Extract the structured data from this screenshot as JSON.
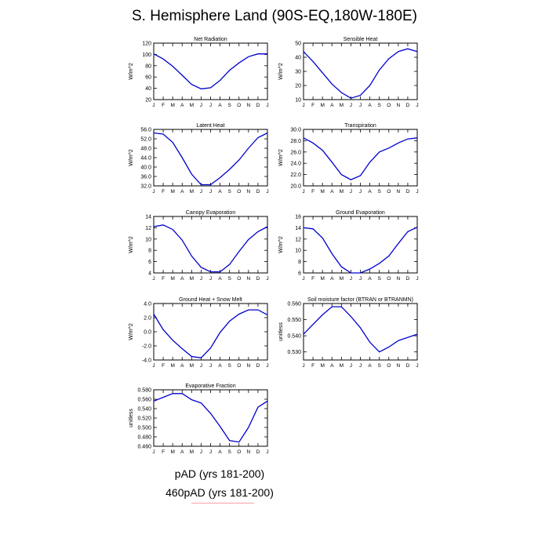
{
  "title": "S. Hemisphere Land (90S-EQ,180W-180E)",
  "legend": [
    {
      "label": "pAD (yrs 181-200)",
      "color": "#0000cc"
    },
    {
      "label": "460pAD (yrs 181-200)",
      "color": "#ff0000"
    }
  ],
  "months": [
    "J",
    "F",
    "M",
    "A",
    "M",
    "J",
    "J",
    "A",
    "S",
    "O",
    "N",
    "D",
    "J"
  ],
  "colors": {
    "series_primary": "#0000cc",
    "series_secondary": "#ff0000"
  },
  "chart_data": [
    {
      "type": "line",
      "title": "Net Radiation",
      "ylabel": "W/m^2",
      "ylim": [
        20,
        120
      ],
      "yticks": [
        20,
        40,
        60,
        80,
        100,
        120
      ],
      "ytick_labels": [
        "20",
        "40",
        "60",
        "80",
        "100",
        "120"
      ],
      "categories": [
        "J",
        "F",
        "M",
        "A",
        "M",
        "J",
        "J",
        "A",
        "S",
        "O",
        "N",
        "D",
        "J"
      ],
      "series": [
        {
          "values": [
            101,
            92,
            79,
            63,
            47,
            39,
            41,
            54,
            72,
            85,
            96,
            101,
            101
          ]
        }
      ]
    },
    {
      "type": "line",
      "title": "Sensible Heat",
      "ylabel": "W/m^2",
      "ylim": [
        10,
        50
      ],
      "yticks": [
        10,
        20,
        30,
        40,
        50
      ],
      "ytick_labels": [
        "10",
        "20",
        "30",
        "40",
        "50"
      ],
      "categories": [
        "J",
        "F",
        "M",
        "A",
        "M",
        "J",
        "J",
        "A",
        "S",
        "O",
        "N",
        "D",
        "J"
      ],
      "series": [
        {
          "values": [
            44,
            37,
            29,
            21,
            15,
            11,
            13,
            20,
            31,
            39,
            44,
            46,
            44
          ]
        }
      ]
    },
    {
      "type": "line",
      "title": "Latent Heat",
      "ylabel": "W/m^2",
      "ylim": [
        32,
        56
      ],
      "yticks": [
        32,
        36,
        40,
        44,
        48,
        52,
        56
      ],
      "ytick_labels": [
        "32.0",
        "36.0",
        "40.0",
        "44.0",
        "48.0",
        "52.0",
        "56.0"
      ],
      "categories": [
        "J",
        "F",
        "M",
        "A",
        "M",
        "J",
        "J",
        "A",
        "S",
        "O",
        "N",
        "D",
        "J"
      ],
      "series": [
        {
          "values": [
            54.5,
            54,
            50.5,
            44,
            37,
            32.5,
            32.5,
            35.5,
            39,
            43,
            48,
            52.5,
            54.5
          ]
        }
      ]
    },
    {
      "type": "line",
      "title": "Transpiration",
      "ylabel": "W/m^2",
      "ylim": [
        20,
        30
      ],
      "yticks": [
        20,
        22,
        24,
        26,
        28,
        30
      ],
      "ytick_labels": [
        "20.0",
        "22.0",
        "24.0",
        "26.0",
        "28.0",
        "30.0"
      ],
      "categories": [
        "J",
        "F",
        "M",
        "A",
        "M",
        "J",
        "J",
        "A",
        "S",
        "O",
        "N",
        "D",
        "J"
      ],
      "series": [
        {
          "values": [
            28.5,
            27.6,
            26.3,
            24.2,
            22,
            21.1,
            21.8,
            24.2,
            26,
            26.7,
            27.6,
            28.3,
            28.5
          ]
        }
      ]
    },
    {
      "type": "line",
      "title": "Canopy Evaporation",
      "ylabel": "W/m^2",
      "ylim": [
        4,
        14
      ],
      "yticks": [
        4,
        6,
        8,
        10,
        12,
        14
      ],
      "ytick_labels": [
        "4",
        "6",
        "8",
        "10",
        "12",
        "14"
      ],
      "categories": [
        "J",
        "F",
        "M",
        "A",
        "M",
        "J",
        "J",
        "A",
        "S",
        "O",
        "N",
        "D",
        "J"
      ],
      "series": [
        {
          "values": [
            12.2,
            12.5,
            11.7,
            9.8,
            7,
            5,
            4.2,
            4.2,
            5.5,
            7.8,
            9.9,
            11.3,
            12.2
          ]
        }
      ]
    },
    {
      "type": "line",
      "title": "Ground Evaporation",
      "ylabel": "W/m^2",
      "ylim": [
        6,
        16
      ],
      "yticks": [
        6,
        8,
        10,
        12,
        14,
        16
      ],
      "ytick_labels": [
        "6",
        "8",
        "10",
        "12",
        "14",
        "16"
      ],
      "categories": [
        "J",
        "F",
        "M",
        "A",
        "M",
        "J",
        "J",
        "A",
        "S",
        "O",
        "N",
        "D",
        "J"
      ],
      "series": [
        {
          "values": [
            14,
            13.8,
            12.2,
            9.4,
            7.1,
            6,
            6,
            6.7,
            7.7,
            9,
            11.2,
            13.3,
            14.1
          ]
        }
      ]
    },
    {
      "type": "line",
      "title": "Ground Heat + Snow Melt",
      "ylabel": "W/m^2",
      "ylim": [
        -4,
        4
      ],
      "yticks": [
        -4,
        -2,
        0,
        2,
        4
      ],
      "ytick_labels": [
        "-4.0",
        "-2.0",
        "0.0",
        "2.0",
        "4.0"
      ],
      "categories": [
        "J",
        "F",
        "M",
        "A",
        "M",
        "J",
        "J",
        "A",
        "S",
        "O",
        "N",
        "D",
        "J"
      ],
      "series": [
        {
          "values": [
            2.5,
            0.3,
            -1.2,
            -2.4,
            -3.5,
            -3.7,
            -2.3,
            -0.1,
            1.5,
            2.5,
            3.1,
            3.1,
            2.4
          ]
        }
      ]
    },
    {
      "type": "line",
      "title": "Soil moisture factor (BTRAN or BTRANMN)",
      "ylabel": "unitless",
      "ylim": [
        0.525,
        0.56
      ],
      "yticks": [
        0.53,
        0.54,
        0.55,
        0.56
      ],
      "ytick_labels": [
        "0.530",
        "0.540",
        "0.550",
        "0.560"
      ],
      "categories": [
        "J",
        "F",
        "M",
        "A",
        "M",
        "J",
        "J",
        "A",
        "S",
        "O",
        "N",
        "D",
        "J"
      ],
      "series": [
        {
          "values": [
            0.541,
            0.547,
            0.553,
            0.558,
            0.558,
            0.552,
            0.545,
            0.536,
            0.53,
            0.533,
            0.537,
            0.539,
            0.541
          ]
        }
      ]
    },
    {
      "type": "line",
      "title": "Evaporative Fraction",
      "ylabel": "unitless",
      "ylim": [
        0.46,
        0.58
      ],
      "yticks": [
        0.46,
        0.48,
        0.5,
        0.52,
        0.54,
        0.56,
        0.58
      ],
      "ytick_labels": [
        "0.460",
        "0.480",
        "0.500",
        "0.520",
        "0.540",
        "0.560",
        "0.580"
      ],
      "categories": [
        "J",
        "F",
        "M",
        "A",
        "M",
        "J",
        "J",
        "A",
        "S",
        "O",
        "N",
        "D",
        "J"
      ],
      "series": [
        {
          "values": [
            0.556,
            0.564,
            0.572,
            0.572,
            0.559,
            0.552,
            0.53,
            0.502,
            0.472,
            0.469,
            0.5,
            0.543,
            0.556
          ]
        }
      ]
    }
  ]
}
